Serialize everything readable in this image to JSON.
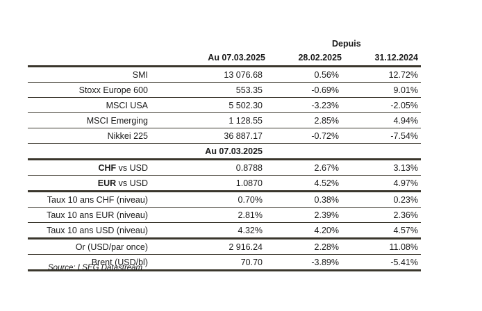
{
  "header": {
    "depuis": "Depuis",
    "col1": "Au 07.03.2025",
    "col2": "28.02.2025",
    "col3": "31.12.2024"
  },
  "equities": [
    {
      "name": "SMI",
      "value": "13 076.68",
      "ch1": "0.56%",
      "ch2": "12.72%"
    },
    {
      "name": "Stoxx Europe 600",
      "value": "553.35",
      "ch1": "-0.69%",
      "ch2": "9.01%"
    },
    {
      "name": "MSCI USA",
      "value": "5 502.30",
      "ch1": "-3.23%",
      "ch2": "-2.05%"
    },
    {
      "name": "MSCI Emerging",
      "value": "1 128.55",
      "ch1": "2.85%",
      "ch2": "4.94%"
    },
    {
      "name": "Nikkei 225",
      "value": "36 887.17",
      "ch1": "-0.72%",
      "ch2": "-7.54%"
    }
  ],
  "subheader": "Au 07.03.2025",
  "fx": [
    {
      "bold": "CHF",
      "rest": " vs USD",
      "value": "0.8788",
      "ch1": "2.67%",
      "ch2": "3.13%"
    },
    {
      "bold": "EUR",
      "rest": " vs USD",
      "value": "1.0870",
      "ch1": "4.52%",
      "ch2": "4.97%"
    }
  ],
  "rates": [
    {
      "name": "Taux 10 ans CHF (niveau)",
      "value": "0.70%",
      "ch1": "0.38%",
      "ch2": "0.23%"
    },
    {
      "name": "Taux 10 ans EUR (niveau)",
      "value": "2.81%",
      "ch1": "2.39%",
      "ch2": "2.36%"
    },
    {
      "name": "Taux 10 ans USD (niveau)",
      "value": "4.32%",
      "ch1": "4.20%",
      "ch2": "4.57%"
    }
  ],
  "commodities": [
    {
      "name": "Or (USD/par once)",
      "value": "2 916.24",
      "ch1": "2.28%",
      "ch2": "11.08%"
    },
    {
      "name": "Brent (USD/bl)",
      "value": "70.70",
      "ch1": "-3.89%",
      "ch2": "-5.41%"
    }
  ],
  "source": "Source: LSEG Datastream"
}
